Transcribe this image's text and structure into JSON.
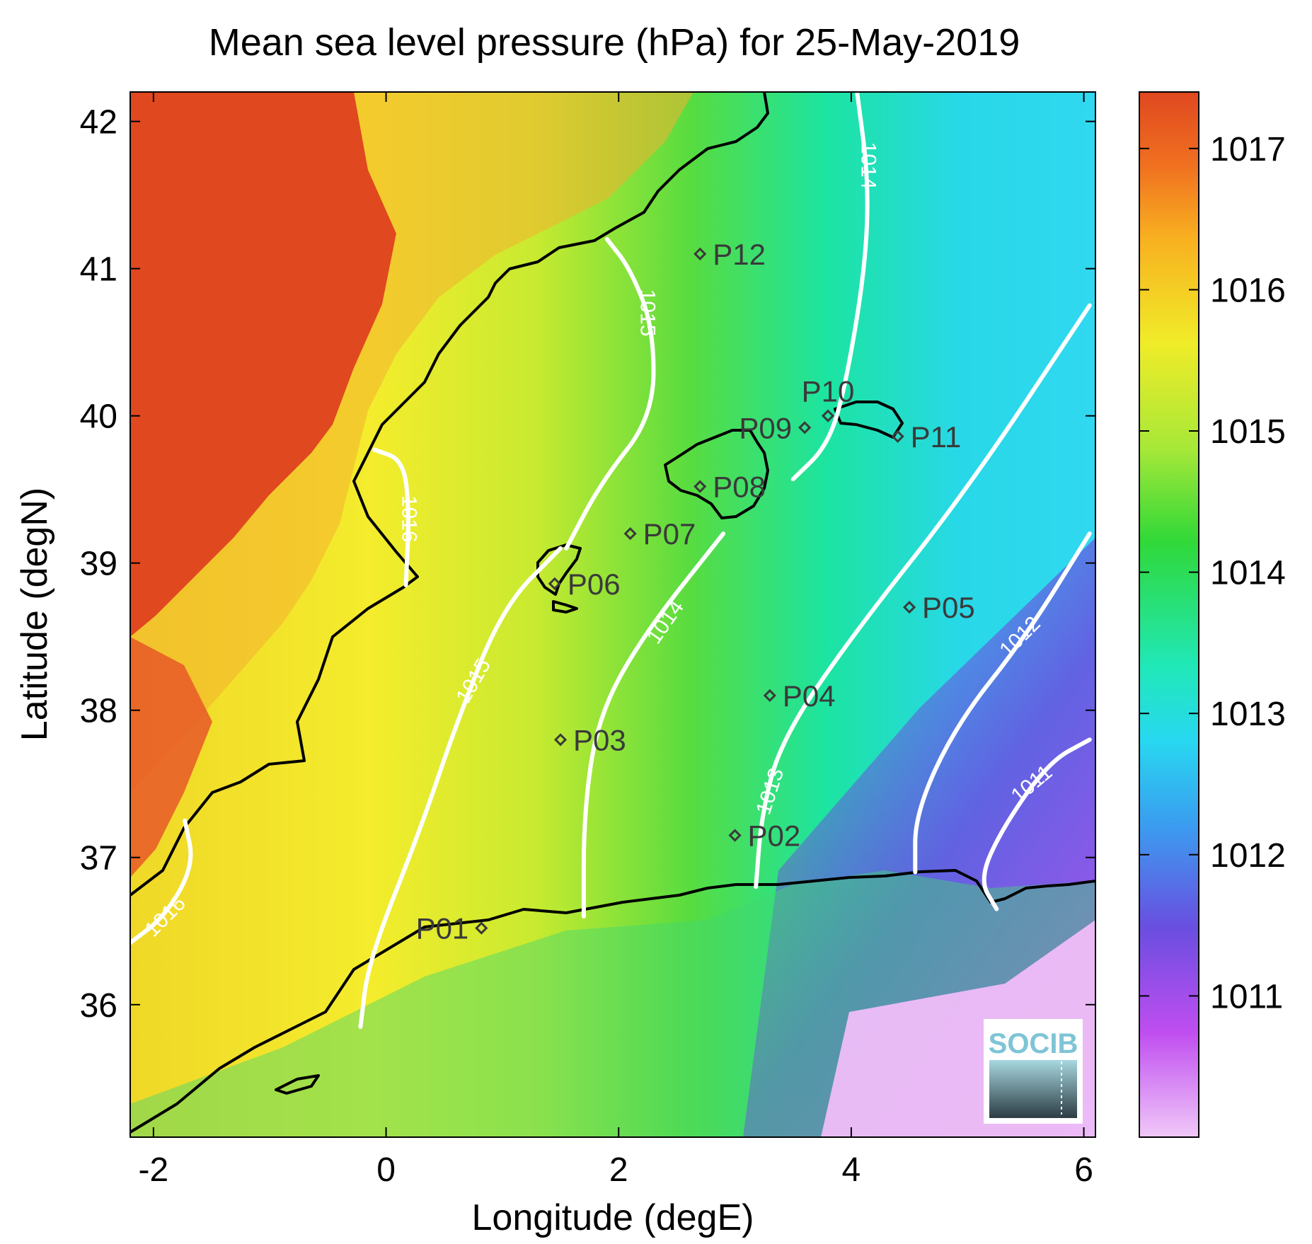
{
  "title": "Mean sea level pressure (hPa) for 25-May-2019",
  "xlabel": "Longitude (degE)",
  "ylabel": "Latitude (degN)",
  "xlim": [
    -2.2,
    6.1
  ],
  "ylim": [
    35.1,
    42.2
  ],
  "x_ticks": [
    {
      "value": -2,
      "label": "-2"
    },
    {
      "value": 0,
      "label": "0"
    },
    {
      "value": 2,
      "label": "2"
    },
    {
      "value": 4,
      "label": "4"
    },
    {
      "value": 6,
      "label": "6"
    }
  ],
  "y_ticks": [
    {
      "value": 36,
      "label": "36"
    },
    {
      "value": 37,
      "label": "37"
    },
    {
      "value": 38,
      "label": "38"
    },
    {
      "value": 39,
      "label": "39"
    },
    {
      "value": 40,
      "label": "40"
    },
    {
      "value": 41,
      "label": "41"
    },
    {
      "value": 42,
      "label": "42"
    }
  ],
  "colorbar": {
    "range": [
      1010.0,
      1017.4
    ],
    "ticks": [
      {
        "value": 1011,
        "label": "1011"
      },
      {
        "value": 1012,
        "label": "1012"
      },
      {
        "value": 1013,
        "label": "1013"
      },
      {
        "value": 1014,
        "label": "1014"
      },
      {
        "value": 1015,
        "label": "1015"
      },
      {
        "value": 1016,
        "label": "1016"
      },
      {
        "value": 1017,
        "label": "1017"
      }
    ],
    "colors": [
      "#f0c8f8",
      "#c04ef0",
      "#6a4ee0",
      "#28d8f0",
      "#20e8b8",
      "#30d838",
      "#a8e838",
      "#f0ec28",
      "#f8a820",
      "#e04820"
    ]
  },
  "stations": [
    {
      "id": "P01",
      "label": "P01",
      "lon": 0.82,
      "lat": 36.52,
      "label_side": "left"
    },
    {
      "id": "P02",
      "label": "P02",
      "lon": 3.0,
      "lat": 37.15,
      "label_side": "right"
    },
    {
      "id": "P03",
      "label": "P03",
      "lon": 1.5,
      "lat": 37.8,
      "label_side": "right"
    },
    {
      "id": "P04",
      "label": "P04",
      "lon": 3.3,
      "lat": 38.1,
      "label_side": "right"
    },
    {
      "id": "P05",
      "label": "P05",
      "lon": 4.5,
      "lat": 38.7,
      "label_side": "right"
    },
    {
      "id": "P06",
      "label": "P06",
      "lon": 1.45,
      "lat": 38.86,
      "label_side": "right"
    },
    {
      "id": "P07",
      "label": "P07",
      "lon": 2.1,
      "lat": 39.2,
      "label_side": "right"
    },
    {
      "id": "P08",
      "label": "P08",
      "lon": 2.7,
      "lat": 39.52,
      "label_side": "right"
    },
    {
      "id": "P09",
      "label": "P09",
      "lon": 3.6,
      "lat": 39.92,
      "label_side": "left"
    },
    {
      "id": "P10",
      "label": "P10",
      "lon": 3.8,
      "lat": 40.0,
      "label_side": "top"
    },
    {
      "id": "P11",
      "label": "P11",
      "lon": 4.4,
      "lat": 39.86,
      "label_side": "right"
    },
    {
      "id": "P12",
      "label": "P12",
      "lon": 2.7,
      "lat": 41.1,
      "label_side": "right"
    }
  ],
  "contours": [
    {
      "value": 1016,
      "label": "1016",
      "points": [
        [
          -2.2,
          36.42
        ],
        [
          -1.9,
          36.6
        ],
        [
          -1.65,
          36.95
        ],
        [
          -1.73,
          37.25
        ]
      ],
      "label_at": [
        -1.9,
        36.6
      ],
      "label_angle": -45
    },
    {
      "value": 1016,
      "label": "1016",
      "points": [
        [
          -0.1,
          39.77
        ],
        [
          0.15,
          39.7
        ],
        [
          0.2,
          39.35
        ],
        [
          0.17,
          38.85
        ]
      ],
      "label_at": [
        0.2,
        39.3
      ],
      "label_angle": 90
    },
    {
      "value": 1015,
      "label": "1015",
      "points": [
        [
          -0.22,
          35.85
        ],
        [
          -0.15,
          36.3
        ],
        [
          0.3,
          37.2
        ],
        [
          0.6,
          37.9
        ],
        [
          1.0,
          38.7
        ],
        [
          1.5,
          39.1
        ]
      ],
      "label_at": [
        0.75,
        38.2
      ],
      "label_angle": -60
    },
    {
      "value": 1015,
      "label": "1015",
      "points": [
        [
          1.55,
          39.1
        ],
        [
          1.85,
          39.55
        ],
        [
          2.3,
          40.0
        ],
        [
          2.3,
          40.6
        ],
        [
          2.1,
          41.0
        ],
        [
          1.9,
          41.2
        ]
      ],
      "label_at": [
        2.25,
        40.7
      ],
      "label_angle": 90
    },
    {
      "value": 1014,
      "label": "1014",
      "points": [
        [
          1.7,
          36.6
        ],
        [
          1.7,
          37.3
        ],
        [
          1.82,
          37.95
        ],
        [
          2.2,
          38.5
        ],
        [
          2.9,
          39.2
        ]
      ],
      "label_at": [
        2.4,
        38.6
      ],
      "label_angle": -55
    },
    {
      "value": 1014,
      "label": "1014",
      "points": [
        [
          3.5,
          39.57
        ],
        [
          3.8,
          39.8
        ],
        [
          3.95,
          40.2
        ],
        [
          4.12,
          41.0
        ],
        [
          4.15,
          41.6
        ],
        [
          4.05,
          42.2
        ]
      ],
      "label_at": [
        4.15,
        41.7
      ],
      "label_angle": 90
    },
    {
      "value": 1013,
      "label": "1013",
      "points": [
        [
          3.18,
          36.8
        ],
        [
          3.23,
          37.3
        ],
        [
          3.4,
          37.8
        ],
        [
          4.0,
          38.5
        ],
        [
          5.0,
          39.5
        ],
        [
          6.05,
          40.75
        ]
      ],
      "label_at": [
        3.3,
        37.45
      ],
      "label_angle": -72
    },
    {
      "value": 1012,
      "label": "1012",
      "points": [
        [
          4.55,
          36.9
        ],
        [
          4.55,
          37.3
        ],
        [
          4.9,
          37.9
        ],
        [
          5.5,
          38.5
        ],
        [
          6.05,
          39.2
        ]
      ],
      "label_at": [
        5.45,
        38.5
      ],
      "label_angle": -45
    },
    {
      "value": 1011,
      "label": "1011",
      "points": [
        [
          5.25,
          36.65
        ],
        [
          5.1,
          36.85
        ],
        [
          5.3,
          37.2
        ],
        [
          5.7,
          37.65
        ],
        [
          6.05,
          37.8
        ]
      ],
      "label_at": [
        5.55,
        37.5
      ],
      "label_angle": -40
    }
  ],
  "logo": {
    "text": "SOCIB"
  }
}
